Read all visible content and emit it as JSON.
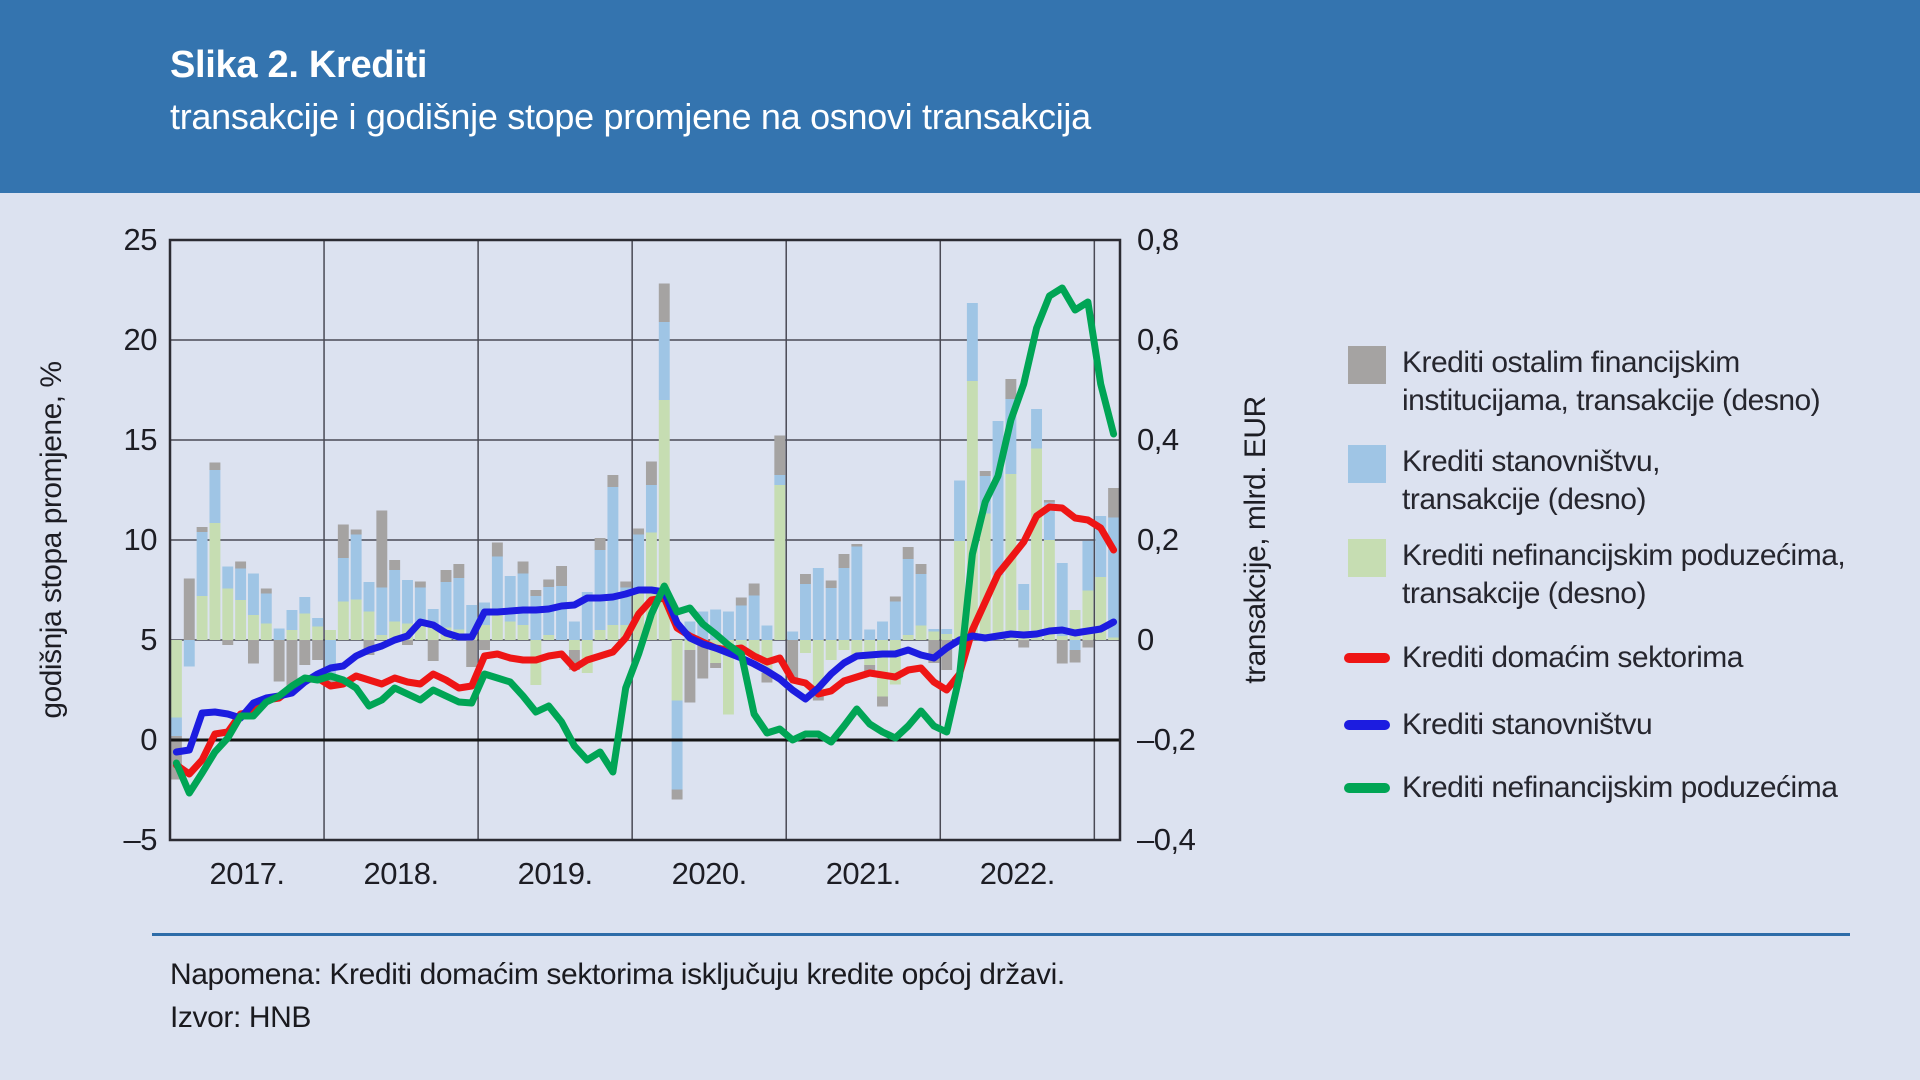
{
  "header": {
    "title": "Slika 2. Krediti",
    "subtitle": "transakcije i godišnje stope promjene na osnovi transakcija"
  },
  "footer": {
    "note": "Napomena: Krediti domaćim sektorima isključuju kredite općoj državi.",
    "source": "Izvor: HNB"
  },
  "colors": {
    "header_bg": "#3474af",
    "background": "#dce2f0",
    "bar_gray": "#a5a3a2",
    "bar_blue": "#9fc5e5",
    "bar_green": "#c6ddb2",
    "line_red": "#ee1515",
    "line_blue": "#1c1ce0",
    "line_green": "#00a555",
    "grid": "#4a4a55",
    "zero_line": "#141414",
    "footer_rule": "#2d6ca8"
  },
  "chart_data": {
    "type": "combo",
    "grid": true,
    "legend_position": "right",
    "x_axis": {
      "year_labels": [
        "2017.",
        "2018.",
        "2019.",
        "2020.",
        "2021.",
        "2022."
      ]
    },
    "left_axis": {
      "title": "godišnja stopa promjene, %",
      "range": [
        -5,
        25
      ],
      "ticks": [
        "25",
        "20",
        "15",
        "10",
        "5",
        "0",
        "–5"
      ]
    },
    "right_axis": {
      "title": "transakcije, mlrd. EUR",
      "range": [
        -0.4,
        0.8
      ],
      "ticks": [
        "0,8",
        "0,6",
        "0,4",
        "0,2",
        "0",
        "–0,2",
        "–0,4"
      ]
    },
    "months": [
      "2017-01",
      "2017-02",
      "2017-03",
      "2017-04",
      "2017-05",
      "2017-06",
      "2017-07",
      "2017-08",
      "2017-09",
      "2017-10",
      "2017-11",
      "2017-12",
      "2018-01",
      "2018-02",
      "2018-03",
      "2018-04",
      "2018-05",
      "2018-06",
      "2018-07",
      "2018-08",
      "2018-09",
      "2018-10",
      "2018-11",
      "2018-12",
      "2019-01",
      "2019-02",
      "2019-03",
      "2019-04",
      "2019-05",
      "2019-06",
      "2019-07",
      "2019-08",
      "2019-09",
      "2019-10",
      "2019-11",
      "2019-12",
      "2020-01",
      "2020-02",
      "2020-03",
      "2020-04",
      "2020-05",
      "2020-06",
      "2020-07",
      "2020-08",
      "2020-09",
      "2020-10",
      "2020-11",
      "2020-12",
      "2021-01",
      "2021-02",
      "2021-03",
      "2021-04",
      "2021-05",
      "2021-06",
      "2021-07",
      "2021-08",
      "2021-09",
      "2021-10",
      "2021-11",
      "2021-12",
      "2022-01",
      "2022-02",
      "2022-03",
      "2022-04",
      "2022-05",
      "2022-06",
      "2022-07",
      "2022-08",
      "2022-09",
      "2022-10",
      "2022-11",
      "2022-12",
      "2023-01",
      "2023-02"
    ],
    "bar_series": [
      {
        "name": "Krediti nefinancijskim poduzećima, transakcije (desno)",
        "axis": "right",
        "color": "#c6ddb2",
        "values": [
          -0.155,
          0.0,
          0.088,
          0.234,
          0.103,
          0.08,
          0.05,
          0.033,
          0.0,
          0.02,
          0.053,
          0.027,
          0.02,
          0.077,
          0.081,
          0.057,
          0.01,
          0.037,
          0.033,
          0.03,
          0.03,
          0.025,
          0.021,
          0.01,
          0.03,
          0.06,
          0.037,
          0.03,
          -0.09,
          0.01,
          0.0,
          -0.02,
          -0.066,
          0.02,
          0.03,
          0.03,
          0.104,
          0.215,
          0.48,
          -0.121,
          -0.02,
          0.0,
          -0.046,
          -0.149,
          -0.02,
          -0.03,
          -0.066,
          0.31,
          0.0,
          -0.026,
          -0.101,
          -0.04,
          -0.02,
          -0.03,
          -0.05,
          -0.113,
          -0.089,
          0.01,
          0.029,
          0.017,
          0.012,
          0.198,
          0.518,
          0.253,
          0.13,
          0.332,
          0.06,
          0.383,
          0.2,
          0.008,
          0.06,
          0.099,
          0.126,
          0.005
        ]
      },
      {
        "name": "Krediti stanovništvu, transakcije (desno)",
        "axis": "right",
        "color": "#9fc5e5",
        "values": [
          -0.037,
          -0.053,
          0.128,
          0.106,
          0.044,
          0.063,
          0.083,
          0.06,
          0.023,
          0.04,
          0.033,
          0.017,
          -0.078,
          0.087,
          0.13,
          0.059,
          0.095,
          0.103,
          0.087,
          0.075,
          0.032,
          0.091,
          0.103,
          0.06,
          0.045,
          0.107,
          0.091,
          0.103,
          0.088,
          0.096,
          0.108,
          0.037,
          0.096,
          0.16,
          0.276,
          0.075,
          0.107,
          0.095,
          0.156,
          -0.178,
          0.037,
          0.057,
          0.061,
          0.057,
          0.069,
          0.089,
          0.029,
          0.02,
          0.017,
          0.112,
          0.144,
          0.104,
          0.144,
          0.187,
          0.021,
          0.037,
          0.077,
          0.152,
          0.103,
          0.005,
          0.01,
          0.121,
          0.156,
          0.075,
          0.308,
          0.15,
          0.052,
          0.079,
          0.075,
          0.146,
          -0.02,
          0.099,
          0.122,
          0.24
        ]
      },
      {
        "name": "Krediti ostalim financijskim institucijama, transakcije (desno)",
        "axis": "right",
        "color": "#a5a3a2",
        "values": [
          -0.087,
          0.123,
          0.01,
          0.015,
          -0.01,
          0.014,
          -0.047,
          0.01,
          -0.083,
          -0.093,
          -0.05,
          -0.04,
          -0.011,
          0.067,
          0.01,
          -0.03,
          0.154,
          0.02,
          -0.01,
          0.012,
          -0.042,
          0.024,
          0.028,
          -0.054,
          -0.02,
          0.028,
          0.0,
          0.024,
          0.012,
          0.015,
          0.04,
          -0.04,
          0.0,
          0.024,
          0.024,
          0.012,
          0.012,
          0.047,
          0.077,
          -0.02,
          -0.105,
          -0.077,
          -0.01,
          0.0,
          0.016,
          0.024,
          -0.019,
          0.079,
          -0.081,
          0.02,
          -0.02,
          0.015,
          0.028,
          0.005,
          -0.012,
          -0.02,
          0.01,
          0.024,
          0.02,
          -0.046,
          -0.06,
          0.0,
          0.0,
          0.01,
          0.0,
          0.04,
          -0.015,
          0.0,
          0.005,
          -0.047,
          -0.025,
          -0.015,
          0.0,
          0.059
        ]
      }
    ],
    "line_series": [
      {
        "name": "Krediti domaćim sektorima",
        "axis": "left",
        "color": "#ee1515",
        "values": [
          -1.25,
          -1.7,
          -1.0,
          0.3,
          0.4,
          1.3,
          1.4,
          2.0,
          2.1,
          2.6,
          3.0,
          3.1,
          2.7,
          2.8,
          3.2,
          3.0,
          2.8,
          3.1,
          2.9,
          2.8,
          3.3,
          3.0,
          2.6,
          2.7,
          4.2,
          4.3,
          4.1,
          4.0,
          4.0,
          4.2,
          4.3,
          3.6,
          4.0,
          4.2,
          4.4,
          5.1,
          6.3,
          7.0,
          7.1,
          5.6,
          5.2,
          4.9,
          4.6,
          4.5,
          4.6,
          4.2,
          3.9,
          4.1,
          3.0,
          2.85,
          2.3,
          2.45,
          2.95,
          3.15,
          3.35,
          3.25,
          3.15,
          3.5,
          3.6,
          2.9,
          2.5,
          3.3,
          5.5,
          6.9,
          8.3,
          9.1,
          9.9,
          11.2,
          11.65,
          11.6,
          11.1,
          11.0,
          10.6,
          9.5
        ]
      },
      {
        "name": "Krediti stanovništvu",
        "axis": "left",
        "color": "#1c1ce0",
        "values": [
          -0.6,
          -0.5,
          1.35,
          1.4,
          1.3,
          1.1,
          1.85,
          2.1,
          2.2,
          2.35,
          2.9,
          3.3,
          3.6,
          3.7,
          4.2,
          4.5,
          4.7,
          5.0,
          5.2,
          5.9,
          5.75,
          5.35,
          5.15,
          5.15,
          6.4,
          6.4,
          6.45,
          6.5,
          6.5,
          6.55,
          6.7,
          6.75,
          7.1,
          7.1,
          7.15,
          7.3,
          7.5,
          7.5,
          7.4,
          5.85,
          5.1,
          4.8,
          4.6,
          4.35,
          4.1,
          3.8,
          3.45,
          3.05,
          2.5,
          2.05,
          2.6,
          3.3,
          3.85,
          4.2,
          4.25,
          4.3,
          4.3,
          4.5,
          4.25,
          4.1,
          4.6,
          5.0,
          5.2,
          5.1,
          5.2,
          5.3,
          5.25,
          5.3,
          5.45,
          5.5,
          5.35,
          5.45,
          5.55,
          5.9
        ]
      },
      {
        "name": "Krediti nefinancijskim poduzećima",
        "axis": "left",
        "color": "#00a555",
        "values": [
          -1.15,
          -2.65,
          -1.65,
          -0.6,
          0.1,
          1.2,
          1.2,
          1.9,
          2.2,
          2.7,
          3.1,
          3.0,
          3.2,
          3.0,
          2.6,
          1.7,
          2.0,
          2.6,
          2.3,
          2.0,
          2.5,
          2.2,
          1.9,
          1.85,
          3.3,
          3.1,
          2.9,
          2.2,
          1.4,
          1.7,
          0.9,
          -0.3,
          -1.0,
          -0.6,
          -1.6,
          2.6,
          4.3,
          6.3,
          7.7,
          6.4,
          6.6,
          5.8,
          5.3,
          4.75,
          4.3,
          1.3,
          0.35,
          0.55,
          0.0,
          0.3,
          0.3,
          -0.1,
          0.7,
          1.55,
          0.8,
          0.4,
          0.1,
          0.7,
          1.45,
          0.7,
          0.4,
          3.2,
          9.3,
          11.9,
          13.2,
          16.0,
          17.8,
          20.6,
          22.2,
          22.6,
          21.5,
          21.9,
          17.8,
          15.3
        ]
      }
    ],
    "legend": [
      {
        "swatch": "box",
        "color": "#a5a3a2",
        "lines": [
          "Krediti ostalim financijskim",
          "institucijama, transakcije (desno)"
        ]
      },
      {
        "swatch": "box",
        "color": "#9fc5e5",
        "lines": [
          "Krediti stanovništvu,",
          "transakcije (desno)"
        ]
      },
      {
        "swatch": "box",
        "color": "#c6ddb2",
        "lines": [
          "Krediti nefinancijskim poduzećima,",
          "transakcije (desno)"
        ]
      },
      {
        "swatch": "line",
        "color": "#ee1515",
        "lines": [
          "Krediti domaćim sektorima"
        ]
      },
      {
        "swatch": "line",
        "color": "#1c1ce0",
        "lines": [
          "Krediti stanovništvu"
        ]
      },
      {
        "swatch": "line",
        "color": "#00a555",
        "lines": [
          "Krediti nefinancijskim poduzećima"
        ]
      }
    ]
  }
}
